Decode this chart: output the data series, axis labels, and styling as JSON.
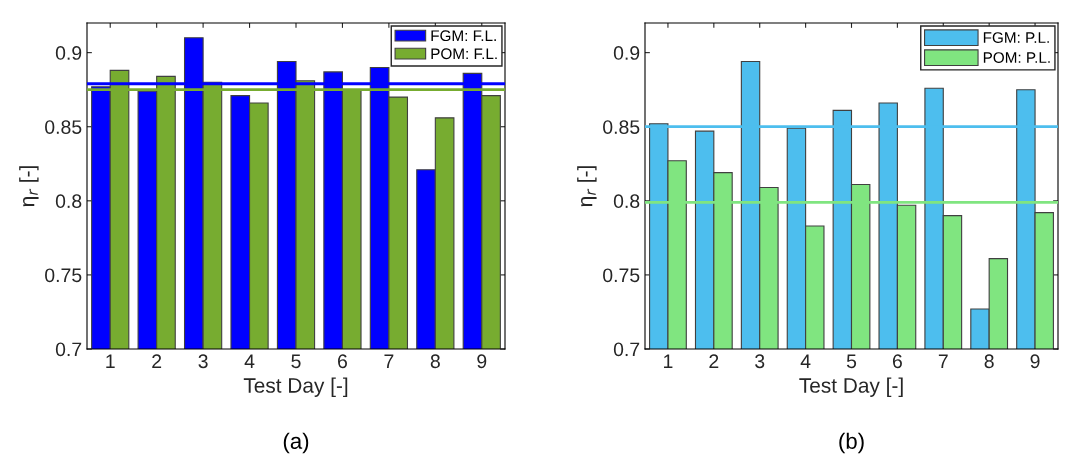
{
  "chart_data": [
    {
      "type": "bar",
      "categories": [
        "1",
        "2",
        "3",
        "4",
        "5",
        "6",
        "7",
        "8",
        "9"
      ],
      "xlabel": "Test Day [-]",
      "ylabel": "η$_{r}$ [-]",
      "ylim": [
        0.7,
        0.92
      ],
      "yticks": [
        0.7,
        0.75,
        0.8,
        0.85,
        0.9
      ],
      "legend": "top right",
      "grid": false,
      "series": [
        {
          "name": "FGM: F.L.",
          "color": "#0000ff",
          "values": [
            0.877,
            0.874,
            0.91,
            0.871,
            0.894,
            0.887,
            0.89,
            0.821,
            0.886
          ]
        },
        {
          "name": "POM: F.L.",
          "color": "#77ac30",
          "values": [
            0.888,
            0.884,
            0.88,
            0.866,
            0.881,
            0.875,
            0.87,
            0.856,
            0.871
          ]
        }
      ],
      "ref_lines": [
        {
          "axis": "y",
          "value": 0.879,
          "color": "#0000ff"
        },
        {
          "axis": "y",
          "value": 0.875,
          "color": "#77ac30"
        }
      ],
      "annotations": [
        "(a)"
      ]
    },
    {
      "type": "bar",
      "categories": [
        "1",
        "2",
        "3",
        "4",
        "5",
        "6",
        "7",
        "8",
        "9"
      ],
      "xlabel": "Test Day [-]",
      "ylabel": "η$_{r}$ [-]",
      "ylim": [
        0.7,
        0.92
      ],
      "yticks": [
        0.7,
        0.75,
        0.8,
        0.85,
        0.9
      ],
      "legend": "top right",
      "grid": false,
      "series": [
        {
          "name": "FGM: P.L.",
          "color": "#4dbeee",
          "values": [
            0.852,
            0.847,
            0.894,
            0.849,
            0.861,
            0.866,
            0.876,
            0.727,
            0.875
          ]
        },
        {
          "name": "POM: P.L.",
          "color": "#80e580",
          "values": [
            0.827,
            0.819,
            0.809,
            0.783,
            0.811,
            0.797,
            0.79,
            0.761,
            0.792
          ]
        }
      ],
      "ref_lines": [
        {
          "axis": "y",
          "value": 0.85,
          "color": "#4dbeee"
        },
        {
          "axis": "y",
          "value": 0.799,
          "color": "#80e580"
        }
      ],
      "annotations": [
        "(b)"
      ]
    }
  ]
}
